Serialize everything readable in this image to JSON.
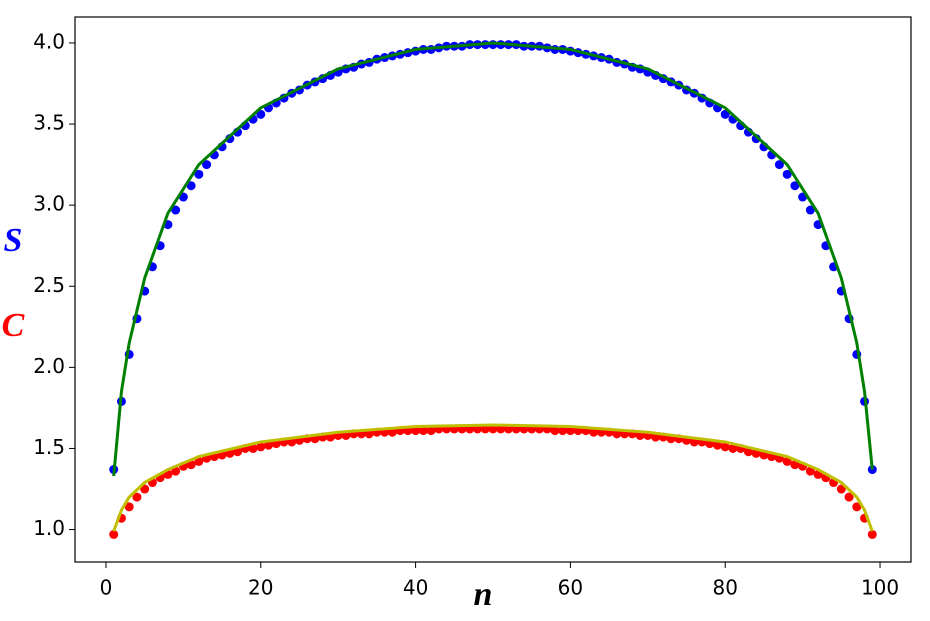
{
  "chart_data": {
    "type": "scatter",
    "xlabel": "n",
    "ylabel_parts": [
      {
        "text": "S",
        "color": "#0000ff"
      },
      {
        "text": "C",
        "color": "#ff0000"
      }
    ],
    "xlim": [
      -4,
      104
    ],
    "ylim": [
      0.8,
      4.16
    ],
    "xticks": [
      0,
      20,
      40,
      60,
      80,
      100
    ],
    "yticks": [
      {
        "value": 1,
        "label": "1.0"
      },
      1.5,
      {
        "value": 2,
        "label": "2.0"
      },
      2.5,
      {
        "value": 3,
        "label": "3.0"
      },
      3.5,
      {
        "value": 4,
        "label": "4.0"
      }
    ],
    "x": [
      1,
      2,
      3,
      4,
      5,
      6,
      7,
      8,
      9,
      10,
      11,
      12,
      13,
      14,
      15,
      16,
      17,
      18,
      19,
      20,
      21,
      22,
      23,
      24,
      25,
      26,
      27,
      28,
      29,
      30,
      31,
      32,
      33,
      34,
      35,
      36,
      37,
      38,
      39,
      40,
      41,
      42,
      43,
      44,
      45,
      46,
      47,
      48,
      49,
      50,
      51,
      52,
      53,
      54,
      55,
      56,
      57,
      58,
      59,
      60,
      61,
      62,
      63,
      64,
      65,
      66,
      67,
      68,
      69,
      70,
      71,
      72,
      73,
      74,
      75,
      76,
      77,
      78,
      79,
      80,
      81,
      82,
      83,
      84,
      85,
      86,
      87,
      88,
      89,
      90,
      91,
      92,
      93,
      94,
      95,
      96,
      97,
      98,
      99
    ],
    "series": [
      {
        "style": "dots",
        "color": "#0000ff",
        "values": [
          1.37,
          1.79,
          2.08,
          2.3,
          2.47,
          2.62,
          2.75,
          2.88,
          2.97,
          3.05,
          3.12,
          3.19,
          3.25,
          3.31,
          3.36,
          3.41,
          3.45,
          3.49,
          3.53,
          3.56,
          3.6,
          3.63,
          3.66,
          3.69,
          3.71,
          3.74,
          3.76,
          3.78,
          3.8,
          3.82,
          3.84,
          3.85,
          3.87,
          3.88,
          3.9,
          3.91,
          3.92,
          3.93,
          3.94,
          3.95,
          3.96,
          3.96,
          3.97,
          3.98,
          3.98,
          3.98,
          3.99,
          3.99,
          3.99,
          3.99,
          3.99,
          3.99,
          3.99,
          3.98,
          3.98,
          3.98,
          3.97,
          3.96,
          3.96,
          3.95,
          3.94,
          3.93,
          3.92,
          3.91,
          3.9,
          3.88,
          3.87,
          3.85,
          3.84,
          3.82,
          3.8,
          3.78,
          3.76,
          3.74,
          3.71,
          3.69,
          3.66,
          3.63,
          3.6,
          3.56,
          3.53,
          3.49,
          3.45,
          3.41,
          3.36,
          3.31,
          3.25,
          3.19,
          3.12,
          3.05,
          2.97,
          2.88,
          2.75,
          2.62,
          2.47,
          2.3,
          2.08,
          1.79,
          1.37
        ]
      },
      {
        "style": "dots",
        "color": "#ff0000",
        "values": [
          0.97,
          1.07,
          1.14,
          1.2,
          1.25,
          1.29,
          1.32,
          1.34,
          1.36,
          1.39,
          1.4,
          1.42,
          1.44,
          1.45,
          1.46,
          1.47,
          1.48,
          1.5,
          1.5,
          1.51,
          1.52,
          1.53,
          1.54,
          1.54,
          1.55,
          1.56,
          1.56,
          1.57,
          1.57,
          1.58,
          1.58,
          1.59,
          1.59,
          1.59,
          1.6,
          1.6,
          1.6,
          1.61,
          1.61,
          1.61,
          1.61,
          1.61,
          1.62,
          1.62,
          1.62,
          1.62,
          1.62,
          1.62,
          1.62,
          1.62,
          1.62,
          1.62,
          1.62,
          1.62,
          1.62,
          1.62,
          1.62,
          1.61,
          1.61,
          1.61,
          1.61,
          1.61,
          1.6,
          1.6,
          1.6,
          1.59,
          1.59,
          1.59,
          1.58,
          1.58,
          1.57,
          1.57,
          1.56,
          1.56,
          1.55,
          1.54,
          1.54,
          1.53,
          1.52,
          1.51,
          1.5,
          1.5,
          1.48,
          1.47,
          1.46,
          1.45,
          1.44,
          1.42,
          1.4,
          1.39,
          1.36,
          1.34,
          1.32,
          1.29,
          1.25,
          1.2,
          1.14,
          1.07,
          0.97
        ]
      },
      {
        "style": "line",
        "color": "#008000",
        "x": [
          1,
          2,
          3,
          5,
          8,
          12,
          20,
          30,
          40,
          50,
          60,
          70,
          80,
          88,
          92,
          95,
          97,
          98,
          99
        ],
        "values": [
          1.33,
          1.85,
          2.15,
          2.55,
          2.95,
          3.25,
          3.6,
          3.84,
          3.96,
          4.0,
          3.96,
          3.84,
          3.6,
          3.25,
          2.95,
          2.55,
          2.15,
          1.85,
          1.37
        ]
      },
      {
        "style": "line",
        "color": "#bfbf00",
        "x": [
          1,
          2,
          3,
          5,
          8,
          12,
          20,
          30,
          40,
          50,
          60,
          70,
          80,
          88,
          92,
          95,
          97,
          98,
          99
        ],
        "values": [
          0.99,
          1.12,
          1.2,
          1.29,
          1.37,
          1.45,
          1.54,
          1.6,
          1.635,
          1.645,
          1.635,
          1.6,
          1.54,
          1.45,
          1.37,
          1.29,
          1.2,
          1.12,
          0.99
        ]
      }
    ]
  }
}
